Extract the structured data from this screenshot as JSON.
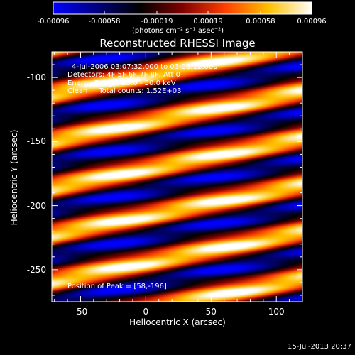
{
  "chart_data": {
    "type": "heatmap",
    "title": "Reconstructed RHESSI Image",
    "xlabel": "Heliocentric X (arcsec)",
    "ylabel": "Heliocentric Y (arcsec)",
    "xlim": [
      -72,
      120
    ],
    "ylim": [
      -275,
      -80
    ],
    "xticks": [
      "-50",
      "0",
      "50",
      "100"
    ],
    "xtick_values": [
      -50,
      0,
      50,
      100
    ],
    "yticks": [
      "-100",
      "-150",
      "-200",
      "-250"
    ],
    "ytick_values": [
      -100,
      -150,
      -200,
      -250
    ],
    "colorbar": {
      "ticks": [
        "-0.00096",
        "-0.00058",
        "-0.00019",
        "0.00019",
        "0.00058",
        "0.00096"
      ],
      "tick_values": [
        -0.00096,
        -0.00058,
        -0.00019,
        0.00019,
        0.00058,
        0.00096
      ],
      "units": "(photons cm⁻² s⁻¹ asec⁻²)",
      "colormap": [
        "#0000ff",
        "#000080",
        "#000000",
        "#800000",
        "#ff4000",
        "#ffc000",
        "#ffffff"
      ]
    },
    "annotations": {
      "time_range": "4-Jul-2006 03:07:32.000 to 03:08:12.000",
      "detectors": "Detectors: 4F 5F 6F 7F 8F, Att 0",
      "energy_range": "Energy Range: 25.0 - 50.0 keV",
      "method_counts": "Clean     Total counts: 1.52E+03",
      "peak": "Position of Peak = [58,-196]"
    },
    "peak": {
      "x": 58,
      "y": -196
    },
    "band_slope": 0.2,
    "band_period": 36.5,
    "band_phase_y": -196
  },
  "footer": {
    "date": "15-Jul-2013 20:37"
  }
}
